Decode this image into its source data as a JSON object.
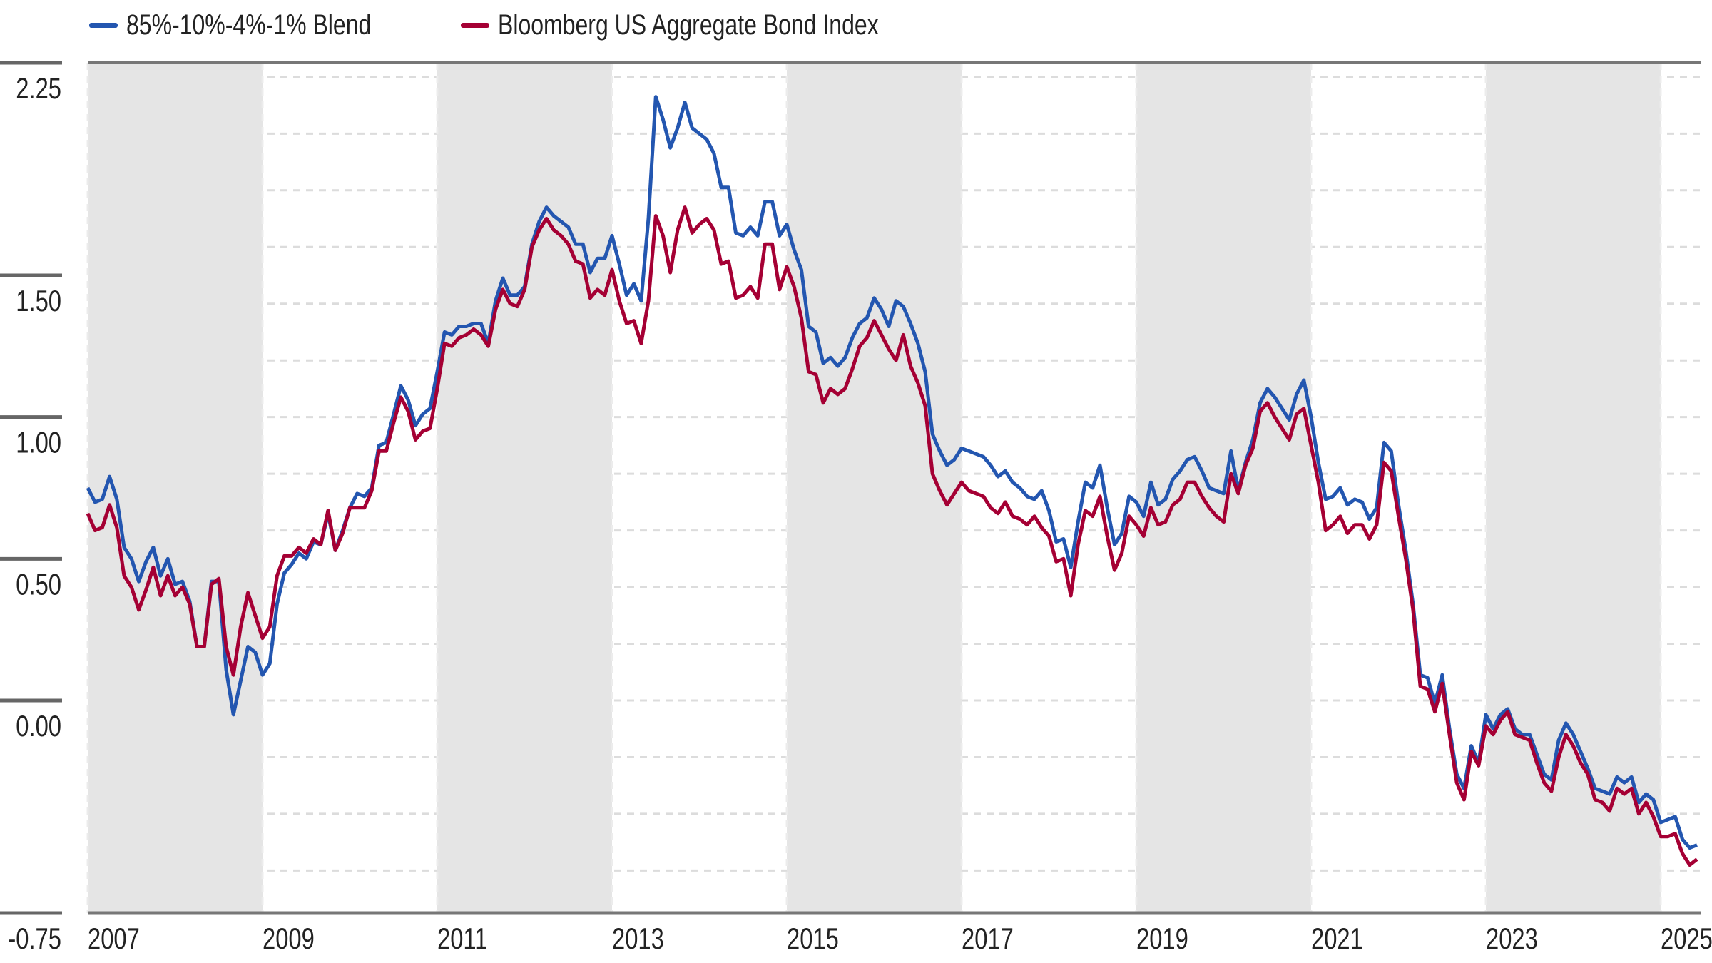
{
  "chart_data": {
    "type": "line",
    "title": "",
    "xlabel": "",
    "ylabel": "",
    "x_start": "2007-01",
    "x_end": "2025-06",
    "frequency": "monthly",
    "xlim": [
      2007,
      2025.45
    ],
    "ylim": [
      -0.75,
      2.25
    ],
    "y_ticks": [
      "2.25",
      "1.50",
      "1.00",
      "0.50",
      "0.00",
      "-0.75"
    ],
    "y_tick_values": [
      2.25,
      1.5,
      1.0,
      0.5,
      0.0,
      -0.75
    ],
    "x_ticks": [
      "2007",
      "2009",
      "2011",
      "2013",
      "2015",
      "2017",
      "2019",
      "2021",
      "2023",
      "2025"
    ],
    "shaded_periods": [
      [
        2007,
        2009
      ],
      [
        2011,
        2013
      ],
      [
        2015,
        2017
      ],
      [
        2019,
        2021
      ],
      [
        2023,
        2025
      ]
    ],
    "grid": "horizontal dashed",
    "legend_position": "top-left",
    "series": [
      {
        "name": "85%-10%-4%-1% Blend",
        "color": "#2356b0",
        "values": [
          0.75,
          0.7,
          0.71,
          0.79,
          0.71,
          0.54,
          0.5,
          0.42,
          0.49,
          0.54,
          0.44,
          0.5,
          0.41,
          0.42,
          0.35,
          0.19,
          0.19,
          0.42,
          0.42,
          0.11,
          -0.05,
          0.07,
          0.19,
          0.17,
          0.09,
          0.13,
          0.34,
          0.45,
          0.48,
          0.52,
          0.5,
          0.56,
          0.55,
          0.66,
          0.53,
          0.6,
          0.68,
          0.73,
          0.72,
          0.75,
          0.9,
          0.91,
          1.01,
          1.11,
          1.06,
          0.97,
          1.01,
          1.03,
          1.16,
          1.3,
          1.29,
          1.32,
          1.32,
          1.33,
          1.33,
          1.26,
          1.41,
          1.49,
          1.43,
          1.43,
          1.46,
          1.61,
          1.69,
          1.74,
          1.71,
          1.69,
          1.67,
          1.61,
          1.61,
          1.51,
          1.56,
          1.56,
          1.64,
          1.54,
          1.43,
          1.47,
          1.41,
          1.7,
          2.13,
          2.05,
          1.95,
          2.02,
          2.11,
          2.02,
          2.0,
          1.98,
          1.93,
          1.81,
          1.81,
          1.65,
          1.64,
          1.67,
          1.64,
          1.76,
          1.76,
          1.64,
          1.68,
          1.59,
          1.52,
          1.32,
          1.3,
          1.19,
          1.21,
          1.18,
          1.21,
          1.28,
          1.33,
          1.35,
          1.42,
          1.38,
          1.32,
          1.41,
          1.39,
          1.33,
          1.26,
          1.16,
          0.94,
          0.88,
          0.83,
          0.85,
          0.89,
          0.88,
          0.87,
          0.86,
          0.83,
          0.79,
          0.81,
          0.77,
          0.75,
          0.72,
          0.71,
          0.74,
          0.67,
          0.56,
          0.57,
          0.47,
          0.63,
          0.77,
          0.75,
          0.83,
          0.68,
          0.55,
          0.59,
          0.72,
          0.7,
          0.65,
          0.77,
          0.69,
          0.71,
          0.78,
          0.81,
          0.85,
          0.86,
          0.81,
          0.75,
          0.74,
          0.73,
          0.88,
          0.74,
          0.84,
          0.92,
          1.05,
          1.1,
          1.07,
          1.03,
          0.99,
          1.08,
          1.13,
          1.0,
          0.84,
          0.71,
          0.72,
          0.75,
          0.69,
          0.71,
          0.7,
          0.64,
          0.68,
          0.91,
          0.88,
          0.69,
          0.53,
          0.34,
          0.09,
          0.08,
          -0.01,
          0.09,
          -0.1,
          -0.26,
          -0.31,
          -0.16,
          -0.22,
          -0.05,
          -0.1,
          -0.05,
          -0.03,
          -0.1,
          -0.12,
          -0.12,
          -0.19,
          -0.26,
          -0.28,
          -0.14,
          -0.08,
          -0.12,
          -0.18,
          -0.24,
          -0.31,
          -0.32,
          -0.33,
          -0.27,
          -0.29,
          -0.27,
          -0.36,
          -0.33,
          -0.35,
          -0.43,
          -0.42,
          -0.41,
          -0.49,
          -0.52,
          -0.51
        ]
      },
      {
        "name": "Bloomberg US Aggregate Bond Index",
        "color": "#a50034",
        "values": [
          0.66,
          0.6,
          0.61,
          0.69,
          0.61,
          0.44,
          0.4,
          0.32,
          0.39,
          0.47,
          0.37,
          0.44,
          0.37,
          0.4,
          0.34,
          0.19,
          0.19,
          0.41,
          0.43,
          0.19,
          0.09,
          0.26,
          0.38,
          0.3,
          0.22,
          0.26,
          0.44,
          0.51,
          0.51,
          0.54,
          0.52,
          0.57,
          0.55,
          0.67,
          0.53,
          0.59,
          0.68,
          0.68,
          0.68,
          0.74,
          0.88,
          0.88,
          0.98,
          1.07,
          1.02,
          0.92,
          0.95,
          0.96,
          1.1,
          1.26,
          1.25,
          1.28,
          1.29,
          1.31,
          1.29,
          1.25,
          1.38,
          1.45,
          1.4,
          1.39,
          1.45,
          1.6,
          1.66,
          1.7,
          1.66,
          1.64,
          1.61,
          1.55,
          1.54,
          1.42,
          1.45,
          1.43,
          1.52,
          1.41,
          1.33,
          1.34,
          1.26,
          1.41,
          1.71,
          1.64,
          1.51,
          1.66,
          1.74,
          1.65,
          1.68,
          1.7,
          1.66,
          1.54,
          1.55,
          1.42,
          1.43,
          1.46,
          1.42,
          1.61,
          1.61,
          1.45,
          1.53,
          1.46,
          1.35,
          1.16,
          1.15,
          1.05,
          1.1,
          1.08,
          1.1,
          1.17,
          1.25,
          1.28,
          1.34,
          1.29,
          1.24,
          1.2,
          1.29,
          1.18,
          1.12,
          1.04,
          0.8,
          0.74,
          0.69,
          0.73,
          0.77,
          0.74,
          0.73,
          0.72,
          0.68,
          0.66,
          0.7,
          0.65,
          0.64,
          0.62,
          0.65,
          0.61,
          0.58,
          0.49,
          0.5,
          0.37,
          0.55,
          0.67,
          0.65,
          0.72,
          0.58,
          0.46,
          0.52,
          0.65,
          0.62,
          0.58,
          0.68,
          0.62,
          0.63,
          0.69,
          0.71,
          0.77,
          0.77,
          0.72,
          0.68,
          0.65,
          0.63,
          0.8,
          0.73,
          0.83,
          0.89,
          1.02,
          1.05,
          1.0,
          0.96,
          0.92,
          1.01,
          1.03,
          0.9,
          0.77,
          0.6,
          0.62,
          0.65,
          0.59,
          0.62,
          0.62,
          0.57,
          0.62,
          0.84,
          0.81,
          0.65,
          0.5,
          0.32,
          0.05,
          0.04,
          -0.04,
          0.06,
          -0.12,
          -0.29,
          -0.35,
          -0.18,
          -0.23,
          -0.09,
          -0.12,
          -0.07,
          -0.04,
          -0.12,
          -0.13,
          -0.14,
          -0.22,
          -0.29,
          -0.32,
          -0.2,
          -0.12,
          -0.16,
          -0.22,
          -0.26,
          -0.35,
          -0.36,
          -0.39,
          -0.31,
          -0.33,
          -0.31,
          -0.4,
          -0.36,
          -0.41,
          -0.48,
          -0.48,
          -0.47,
          -0.54,
          -0.58,
          -0.56
        ]
      }
    ]
  }
}
